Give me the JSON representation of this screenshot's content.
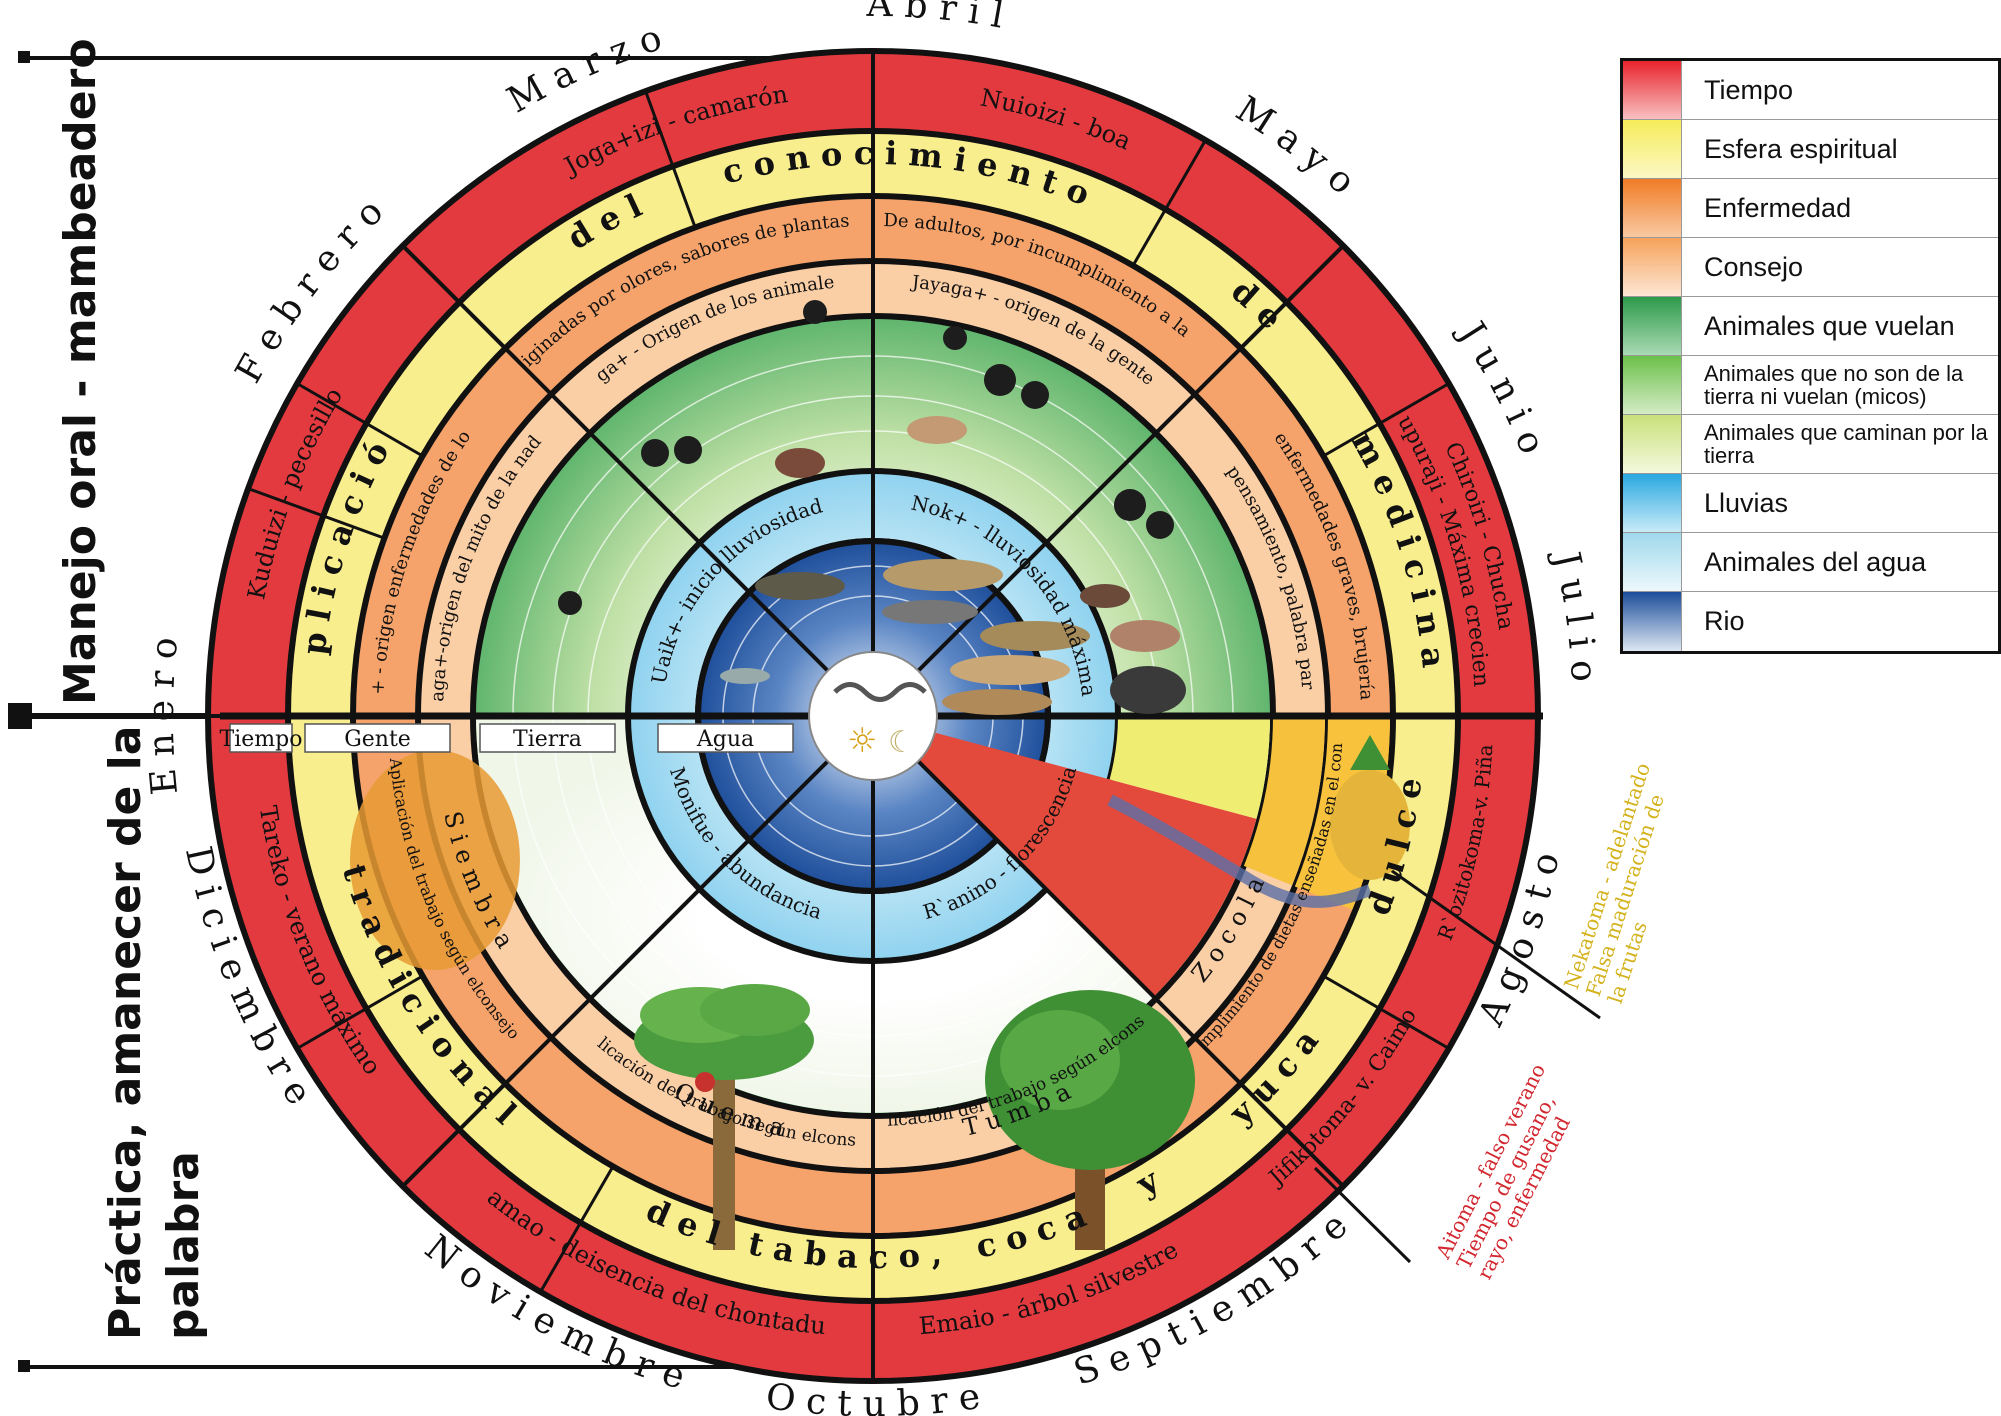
{
  "side_labels": {
    "top": "Manejo oral - mambeadero",
    "bottom_line1": "Práctica, amanecer de la",
    "bottom_line2": "palabra"
  },
  "months": {
    "enero": "E n e r o",
    "febrero": "F e b r e r o",
    "marzo": "M a r z o",
    "abril": "A b r i l",
    "mayo": "M a y o",
    "junio": "J u n i o",
    "julio": "J u l i o",
    "agosto": "A g o s t o",
    "septiembre": "S e p t i e m b r e",
    "octubre": "O c t u b r e",
    "noviembre": "N o v i e m b r e",
    "diciembre": "D i c i e m b r e"
  },
  "time_ring": {
    "kuduizi": "Kuduizi - pecesillo",
    "jogaizi": "Joga+izi - camarón",
    "nuioizi": "Nuioizi - boa",
    "chiroiri_1": "Chiroiri - Chucha",
    "chiroiri_2": "Chupuraji - Máxima creciente",
    "rozito": "R`ozitokoma-v. Piña",
    "jifiko": "Jifikotoma- v. Caimo",
    "emaio": "Emaio - árbol silvestre",
    "yamao": "Yamao - deisencia del chontaduro",
    "tareko": "Tareko - verano máximo"
  },
  "spiritual_ring": {
    "top_words": [
      "A p l i c a c i ó n",
      "d e l",
      "c o n o c i m i e n t o",
      "d e",
      "m e d i c i n a"
    ],
    "bottom_words": [
      "t r a d i c i o n a l",
      "d e l",
      "t a b a c o ,",
      "c o c a",
      "y",
      "y u c a",
      "d u l c e"
    ]
  },
  "illness_ring": {
    "ottko": "Ot+++ko-originadas por olores, sabores de plantas y animales.",
    "zera": "Z+era-De adultos, por incumplimiento a la palabra",
    "raiko": "R`a+ko - enfermedades graves, brujería, maldad.",
    "zocola_en": "Enfermedades por incumplimiento de dietas enseñadas en el consejo, accidente y muerte",
    "jenuiza": "Jenuiza+ - origen enfermedades de los niños"
  },
  "council_ring": {
    "jaga": "Jaga+-origen del mito de la nada",
    "jayaga": "Jayaga+ - origen de la gente",
    "iga": "+ga+ - Origen de los animales",
    "komuga": "Komuga+ - pensamiento, palabra para aplicación",
    "siembra": "S i e m b r a",
    "siembra_sub": "Aplicación del trabajo según elconsejo",
    "quema": "Q u e m a",
    "quema_sub": "Aplicación del trabajo según elconsejo",
    "tumba": "T u m b a",
    "tumba_sub": "Aplicación del trabajo según elconsejo",
    "zocola": "Z o c o l a"
  },
  "water_ring": {
    "uaik": "Uaik+- inicio lluviosidad",
    "nok": "Nok+ - lluviosidad máxima",
    "monifue": "Monifue - abundancia",
    "ranino": "R`anino - florescencia"
  },
  "axis_labels": [
    "Tiempo",
    "Gente",
    "Tierra",
    "Agua"
  ],
  "outer_notes": {
    "agosto_note": [
      "Nekatoma - adelantado",
      "Falsa maduración de",
      "la frutas"
    ],
    "sept_note": [
      "Aitoma - falso verano",
      "Tiempo de gusano,",
      "rayo, enfermedad"
    ]
  },
  "legend": [
    {
      "label": "Tiempo",
      "from": "#e8242c",
      "to": "#f9c0c2"
    },
    {
      "label": "Esfera espiritual",
      "from": "#f6ec5a",
      "to": "#fcf8c4"
    },
    {
      "label": "Enfermedad",
      "from": "#f07c26",
      "to": "#f9c9a2"
    },
    {
      "label": "Consejo",
      "from": "#f6a25a",
      "to": "#fde6d4"
    },
    {
      "label": "Animales que vuelan",
      "from": "#2e9a4a",
      "to": "#a9dab4"
    },
    {
      "label": "Animales que no son de la tierra ni vuelan (micos)",
      "from": "#6cc04a",
      "to": "#d4ecc6"
    },
    {
      "label": "Animales que caminan por la tierra",
      "from": "#c9e07a",
      "to": "#f4f9de"
    },
    {
      "label": "Lluvias",
      "from": "#29a8e0",
      "to": "#c9ebf8"
    },
    {
      "label": "Animales del agua",
      "from": "#9fd9ec",
      "to": "#eef8fc"
    },
    {
      "label": "Rio",
      "from": "#1c4d9a",
      "to": "#dde7f3"
    }
  ],
  "colors": {
    "tiempo": "#e33a3f",
    "spiritual": "#f8ee8e",
    "illness": "#f5a36a",
    "council": "#fbcfa6",
    "green": "#7fc47a",
    "water": "#8ccfe9",
    "river": "#2c5fa8"
  }
}
